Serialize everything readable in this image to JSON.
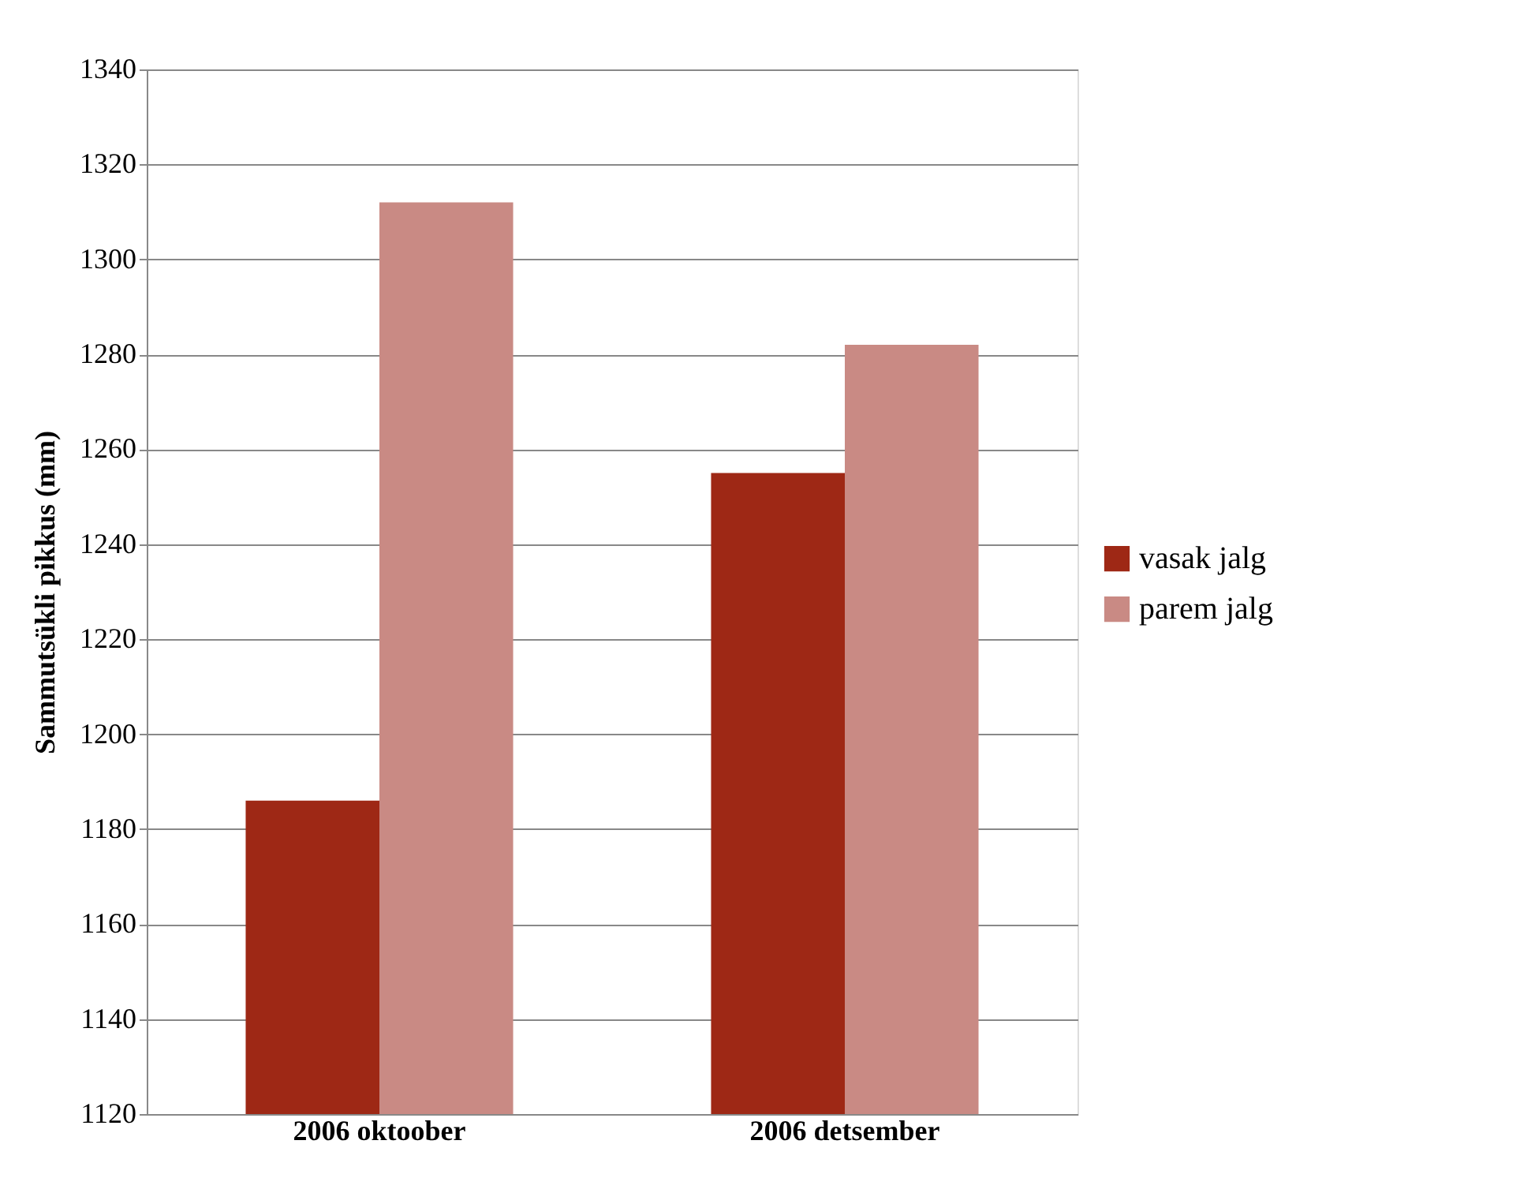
{
  "chart_data": {
    "type": "bar",
    "ylabel": "Sammutsükli pikkus (mm)",
    "categories": [
      "2006 oktoober",
      "2006 detsember"
    ],
    "series": [
      {
        "name": "vasak jalg",
        "color": "#9e2815",
        "values": [
          1186,
          1255
        ]
      },
      {
        "name": "parem jalg",
        "color": "#c98a84",
        "values": [
          1312,
          1282
        ]
      }
    ],
    "ylim": [
      1120,
      1340
    ],
    "yticks": [
      1120,
      1140,
      1160,
      1180,
      1200,
      1220,
      1240,
      1260,
      1280,
      1300,
      1320,
      1340
    ],
    "grid": "y",
    "legend": "right"
  }
}
